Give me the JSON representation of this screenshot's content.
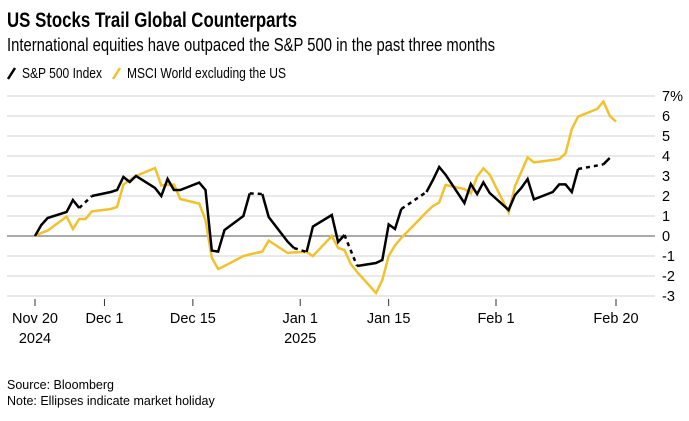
{
  "chart_data": {
    "type": "line",
    "title": "US Stocks Trail Global Counterparts",
    "subtitle": "International equities have outpaced the S&P 500 in the past three months",
    "ylabel": "",
    "xlabel": "",
    "ylim": [
      -3,
      7
    ],
    "y_ticks": [
      7,
      6,
      5,
      4,
      3,
      2,
      1,
      0,
      -1,
      -2,
      -3
    ],
    "y_tick_labels": [
      "7%",
      "6",
      "5",
      "4",
      "3",
      "2",
      "1",
      "0",
      "-1",
      "-2",
      "-3"
    ],
    "xlim": [
      "2024-11-20",
      "2025-02-20"
    ],
    "x_ticks": [
      {
        "date": "2024-11-20",
        "label": "Nov 20",
        "label2": "2024"
      },
      {
        "date": "2024-12-01",
        "label": "Dec 1",
        "label2": ""
      },
      {
        "date": "2024-12-15",
        "label": "Dec 15",
        "label2": ""
      },
      {
        "date": "2025-01-01",
        "label": "Jan 1",
        "label2": "2025"
      },
      {
        "date": "2025-01-15",
        "label": "Jan 15",
        "label2": ""
      },
      {
        "date": "2025-02-01",
        "label": "Feb 1",
        "label2": ""
      },
      {
        "date": "2025-02-20",
        "label": "Feb 20",
        "label2": ""
      }
    ],
    "grid": true,
    "legend_position": "top-left",
    "market_holidays": [
      "2024-11-28",
      "2024-12-25",
      "2025-01-01",
      "2025-01-09",
      "2025-01-20",
      "2025-02-17"
    ],
    "series": [
      {
        "name": "S&P 500 Index",
        "color": "#000000",
        "dashed_over_holidays": true,
        "points": [
          [
            "2024-11-20",
            0
          ],
          [
            "2024-11-21",
            0.55
          ],
          [
            "2024-11-22",
            0.9
          ],
          [
            "2024-11-25",
            1.2
          ],
          [
            "2024-11-26",
            1.8
          ],
          [
            "2024-11-27",
            1.4
          ],
          [
            "2024-11-29",
            2.0
          ],
          [
            "2024-12-02",
            2.2
          ],
          [
            "2024-12-03",
            2.3
          ],
          [
            "2024-12-04",
            2.95
          ],
          [
            "2024-12-05",
            2.7
          ],
          [
            "2024-12-06",
            3.0
          ],
          [
            "2024-12-09",
            2.4
          ],
          [
            "2024-12-10",
            2.0
          ],
          [
            "2024-12-11",
            2.85
          ],
          [
            "2024-12-12",
            2.3
          ],
          [
            "2024-12-13",
            2.3
          ],
          [
            "2024-12-16",
            2.67
          ],
          [
            "2024-12-17",
            2.3
          ],
          [
            "2024-12-18",
            -0.73
          ],
          [
            "2024-12-19",
            -0.78
          ],
          [
            "2024-12-20",
            0.3
          ],
          [
            "2024-12-23",
            1.0
          ],
          [
            "2024-12-24",
            2.13
          ],
          [
            "2024-12-26",
            2.1
          ],
          [
            "2024-12-27",
            0.95
          ],
          [
            "2024-12-30",
            -0.28
          ],
          [
            "2024-12-31",
            -0.6
          ],
          [
            "2025-01-02",
            -0.8
          ],
          [
            "2025-01-03",
            0.47
          ],
          [
            "2025-01-06",
            1.05
          ],
          [
            "2025-01-07",
            -0.3
          ],
          [
            "2025-01-08",
            0.05
          ],
          [
            "2025-01-10",
            -1.5
          ],
          [
            "2025-01-13",
            -1.35
          ],
          [
            "2025-01-14",
            -1.2
          ],
          [
            "2025-01-15",
            0.58
          ],
          [
            "2025-01-16",
            0.35
          ],
          [
            "2025-01-17",
            1.35
          ],
          [
            "2025-01-21",
            2.2
          ],
          [
            "2025-01-22",
            2.8
          ],
          [
            "2025-01-23",
            3.45
          ],
          [
            "2025-01-24",
            3.07
          ],
          [
            "2025-01-27",
            1.65
          ],
          [
            "2025-01-28",
            2.6
          ],
          [
            "2025-01-29",
            2.1
          ],
          [
            "2025-01-30",
            2.68
          ],
          [
            "2025-01-31",
            2.15
          ],
          [
            "2025-02-03",
            1.3
          ],
          [
            "2025-02-04",
            2.05
          ],
          [
            "2025-02-05",
            2.4
          ],
          [
            "2025-02-06",
            2.85
          ],
          [
            "2025-02-07",
            1.83
          ],
          [
            "2025-02-10",
            2.2
          ],
          [
            "2025-02-11",
            2.58
          ],
          [
            "2025-02-12",
            2.58
          ],
          [
            "2025-02-13",
            2.2
          ],
          [
            "2025-02-14",
            3.35
          ],
          [
            "2025-02-18",
            3.58
          ],
          [
            "2025-02-19",
            3.9
          ]
        ]
      },
      {
        "name": "MSCI World excluding the US",
        "color": "#f2c12e",
        "dashed_over_holidays": false,
        "points": [
          [
            "2024-11-20",
            0
          ],
          [
            "2024-11-21",
            0.15
          ],
          [
            "2024-11-22",
            0.27
          ],
          [
            "2024-11-25",
            0.97
          ],
          [
            "2024-11-26",
            0.35
          ],
          [
            "2024-11-27",
            0.85
          ],
          [
            "2024-11-28",
            0.85
          ],
          [
            "2024-11-29",
            1.23
          ],
          [
            "2024-12-02",
            1.35
          ],
          [
            "2024-12-03",
            1.45
          ],
          [
            "2024-12-04",
            2.57
          ],
          [
            "2024-12-05",
            2.8
          ],
          [
            "2024-12-06",
            3.0
          ],
          [
            "2024-12-09",
            3.4
          ],
          [
            "2024-12-10",
            2.53
          ],
          [
            "2024-12-11",
            2.55
          ],
          [
            "2024-12-12",
            2.57
          ],
          [
            "2024-12-13",
            1.85
          ],
          [
            "2024-12-16",
            1.62
          ],
          [
            "2024-12-17",
            0.8
          ],
          [
            "2024-12-18",
            -1.08
          ],
          [
            "2024-12-19",
            -1.65
          ],
          [
            "2024-12-20",
            -1.5
          ],
          [
            "2024-12-23",
            -1.0
          ],
          [
            "2024-12-24",
            -0.92
          ],
          [
            "2024-12-26",
            -0.78
          ],
          [
            "2024-12-27",
            -0.23
          ],
          [
            "2024-12-30",
            -0.85
          ],
          [
            "2024-12-31",
            -0.82
          ],
          [
            "2025-01-02",
            -0.8
          ],
          [
            "2025-01-03",
            -1.0
          ],
          [
            "2025-01-06",
            0
          ],
          [
            "2025-01-07",
            -0.6
          ],
          [
            "2025-01-08",
            -0.7
          ],
          [
            "2025-01-09",
            -1.4
          ],
          [
            "2025-01-10",
            -1.8
          ],
          [
            "2025-01-13",
            -2.85
          ],
          [
            "2025-01-14",
            -2.2
          ],
          [
            "2025-01-15",
            -1.0
          ],
          [
            "2025-01-16",
            -0.47
          ],
          [
            "2025-01-17",
            -0.1
          ],
          [
            "2025-01-20",
            0.87
          ],
          [
            "2025-01-21",
            1.2
          ],
          [
            "2025-01-22",
            1.5
          ],
          [
            "2025-01-23",
            1.68
          ],
          [
            "2025-01-24",
            2.55
          ],
          [
            "2025-01-27",
            2.35
          ],
          [
            "2025-01-28",
            2.13
          ],
          [
            "2025-01-29",
            2.97
          ],
          [
            "2025-01-30",
            3.38
          ],
          [
            "2025-01-31",
            3.07
          ],
          [
            "2025-02-03",
            1.18
          ],
          [
            "2025-02-04",
            2.5
          ],
          [
            "2025-02-05",
            3.2
          ],
          [
            "2025-02-06",
            3.93
          ],
          [
            "2025-02-07",
            3.68
          ],
          [
            "2025-02-10",
            3.8
          ],
          [
            "2025-02-11",
            3.85
          ],
          [
            "2025-02-12",
            4.13
          ],
          [
            "2025-02-13",
            5.35
          ],
          [
            "2025-02-14",
            5.97
          ],
          [
            "2025-02-17",
            6.35
          ],
          [
            "2025-02-18",
            6.72
          ],
          [
            "2025-02-19",
            6.02
          ],
          [
            "2025-02-20",
            5.72
          ]
        ]
      }
    ]
  },
  "footer": {
    "source": "Source: Bloomberg",
    "note": "Note: Ellipses indicate market holiday"
  }
}
